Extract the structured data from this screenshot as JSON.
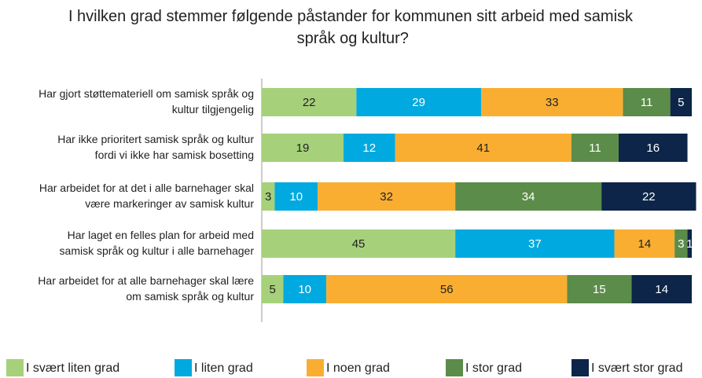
{
  "chart_data": {
    "type": "stacked_bar_horizontal",
    "title": "I hvilken grad stemmer følgende påstander for kommunen sitt arbeid med samisk språk og kultur?",
    "categories": [
      "Har gjort støttemateriell om samisk språk og kultur tilgjengelig",
      "Har ikke prioritert samisk språk og kultur fordi vi ikke har samisk bosetting",
      "Har arbeidet for at det i alle barnehager skal være markeringer av samisk kultur",
      "Har laget en felles plan for arbeid med samisk språk og kultur i alle barnehager",
      "Har arbeidet for at alle barnehager skal lære om samisk språk og kultur"
    ],
    "series": [
      {
        "name": "I svært liten grad",
        "color": "#a6d17a",
        "values": [
          22,
          19,
          3,
          45,
          5
        ]
      },
      {
        "name": "I liten grad",
        "color": "#00a9e0",
        "values": [
          29,
          12,
          10,
          37,
          10
        ]
      },
      {
        "name": "I noen grad",
        "color": "#f9ae32",
        "values": [
          33,
          41,
          32,
          14,
          56
        ]
      },
      {
        "name": "I stor grad",
        "color": "#5b8c4a",
        "values": [
          11,
          11,
          34,
          3,
          15
        ]
      },
      {
        "name": "I svært stor grad",
        "color": "#0c2548",
        "values": [
          5,
          16,
          22,
          1,
          14
        ]
      }
    ],
    "xlim": [
      0,
      100
    ],
    "legend": "bottom"
  }
}
